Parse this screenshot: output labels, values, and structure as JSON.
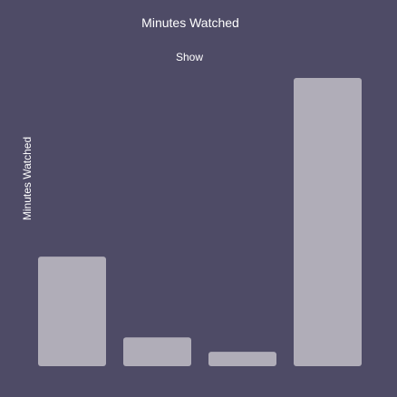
{
  "chart_data": {
    "type": "bar",
    "title": "Minutes Watched",
    "subtitle": "Show",
    "ylabel": "Minutes Watched",
    "xlabel": "",
    "categories": [
      "",
      "",
      "",
      ""
    ],
    "values": [
      38,
      10,
      5,
      100
    ],
    "ylim": [
      0,
      100
    ],
    "grid": false,
    "legend": "none",
    "colors": {
      "background": "#4e4b66",
      "bar": "#b0adb8",
      "text": "#ffffff"
    }
  }
}
